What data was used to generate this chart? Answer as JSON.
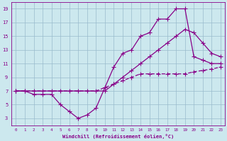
{
  "xlabel": "Windchill (Refroidissement éolien,°C)",
  "bg_color": "#cce8ee",
  "line_color": "#880088",
  "grid_color": "#99bbcc",
  "xlim": [
    -0.5,
    23.5
  ],
  "ylim": [
    2,
    20
  ],
  "xticks": [
    0,
    1,
    2,
    3,
    4,
    5,
    6,
    7,
    8,
    9,
    10,
    11,
    12,
    13,
    14,
    15,
    16,
    17,
    18,
    19,
    20,
    21,
    22,
    23
  ],
  "yticks": [
    3,
    5,
    7,
    9,
    11,
    13,
    15,
    17,
    19
  ],
  "line1_x": [
    0,
    1,
    2,
    3,
    4,
    5,
    6,
    7,
    8,
    9,
    10,
    11,
    12,
    13,
    14,
    15,
    16,
    17,
    18,
    19,
    20,
    21,
    22,
    23
  ],
  "line1_y": [
    7.0,
    7.0,
    6.5,
    6.5,
    6.5,
    5.0,
    4.0,
    3.0,
    3.5,
    4.5,
    7.5,
    10.5,
    12.5,
    13.0,
    15.0,
    15.5,
    17.5,
    17.5,
    19.0,
    19.0,
    12.0,
    11.5,
    11.0,
    11.0
  ],
  "line2_x": [
    0,
    1,
    2,
    3,
    4,
    5,
    6,
    7,
    8,
    9,
    10,
    11,
    12,
    13,
    14,
    15,
    16,
    17,
    18,
    19,
    20,
    21,
    22,
    23
  ],
  "line2_y": [
    7.0,
    7.0,
    7.0,
    7.0,
    7.0,
    7.0,
    7.0,
    7.0,
    7.0,
    7.0,
    7.5,
    8.0,
    8.5,
    9.0,
    9.5,
    9.5,
    9.5,
    9.5,
    9.5,
    9.5,
    9.8,
    10.0,
    10.2,
    10.5
  ],
  "line3_x": [
    0,
    10,
    11,
    12,
    13,
    14,
    15,
    16,
    17,
    18,
    19,
    20,
    21,
    22,
    23
  ],
  "line3_y": [
    7.0,
    7.0,
    8.0,
    9.0,
    10.0,
    11.0,
    12.0,
    13.0,
    14.0,
    15.0,
    16.0,
    15.5,
    14.0,
    12.5,
    12.0
  ]
}
